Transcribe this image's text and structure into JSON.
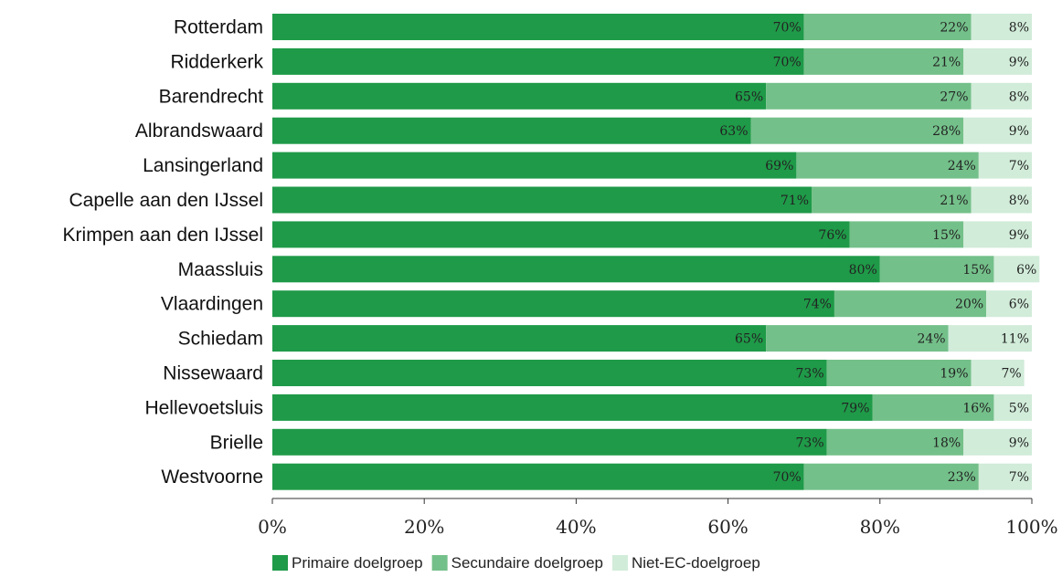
{
  "chart_data": {
    "type": "bar",
    "orientation": "horizontal",
    "stacked": true,
    "percent_stacked": true,
    "categories": [
      "Rotterdam",
      "Ridderkerk",
      "Barendrecht",
      "Albrandswaard",
      "Lansingerland",
      "Capelle aan den IJssel",
      "Krimpen aan den IJssel",
      "Maassluis",
      "Vlaardingen",
      "Schiedam",
      "Nissewaard",
      "Hellevoetsluis",
      "Brielle",
      "Westvoorne"
    ],
    "series": [
      {
        "name": "Primaire doelgroep",
        "color": "#1f9a48",
        "values": [
          70,
          70,
          65,
          63,
          69,
          71,
          76,
          80,
          74,
          65,
          73,
          79,
          73,
          70
        ]
      },
      {
        "name": "Secundaire doelgroep",
        "color": "#74c08a",
        "values": [
          22,
          21,
          27,
          28,
          24,
          21,
          15,
          15,
          20,
          24,
          19,
          16,
          18,
          23
        ]
      },
      {
        "name": "Niet-EC-doelgroep",
        "color": "#d1ecd9",
        "values": [
          8,
          9,
          8,
          9,
          7,
          8,
          9,
          6,
          6,
          11,
          7,
          5,
          9,
          7
        ]
      }
    ],
    "data_labels": [
      [
        "70%",
        "22%",
        "8%"
      ],
      [
        "70%",
        "21%",
        "9%"
      ],
      [
        "65%",
        "27%",
        "8%"
      ],
      [
        "63%",
        "28%",
        "9%"
      ],
      [
        "69%",
        "24%",
        "7%"
      ],
      [
        "71%",
        "21%",
        "8%"
      ],
      [
        "76%",
        "15%",
        "9%"
      ],
      [
        "80%",
        "15%",
        "6%"
      ],
      [
        "74%",
        "20%",
        "6%"
      ],
      [
        "65%",
        "24%",
        "11%"
      ],
      [
        "73%",
        "19%",
        "7%"
      ],
      [
        "79%",
        "16%",
        "5%"
      ],
      [
        "73%",
        "18%",
        "9%"
      ],
      [
        "70%",
        "23%",
        "7%"
      ]
    ],
    "xlim": [
      0,
      100
    ],
    "x_ticks": [
      0,
      20,
      40,
      60,
      80,
      100
    ],
    "x_tick_labels": [
      "0%",
      "20%",
      "40%",
      "60%",
      "80%",
      "100%"
    ],
    "grid": false,
    "legend_position": "bottom"
  }
}
